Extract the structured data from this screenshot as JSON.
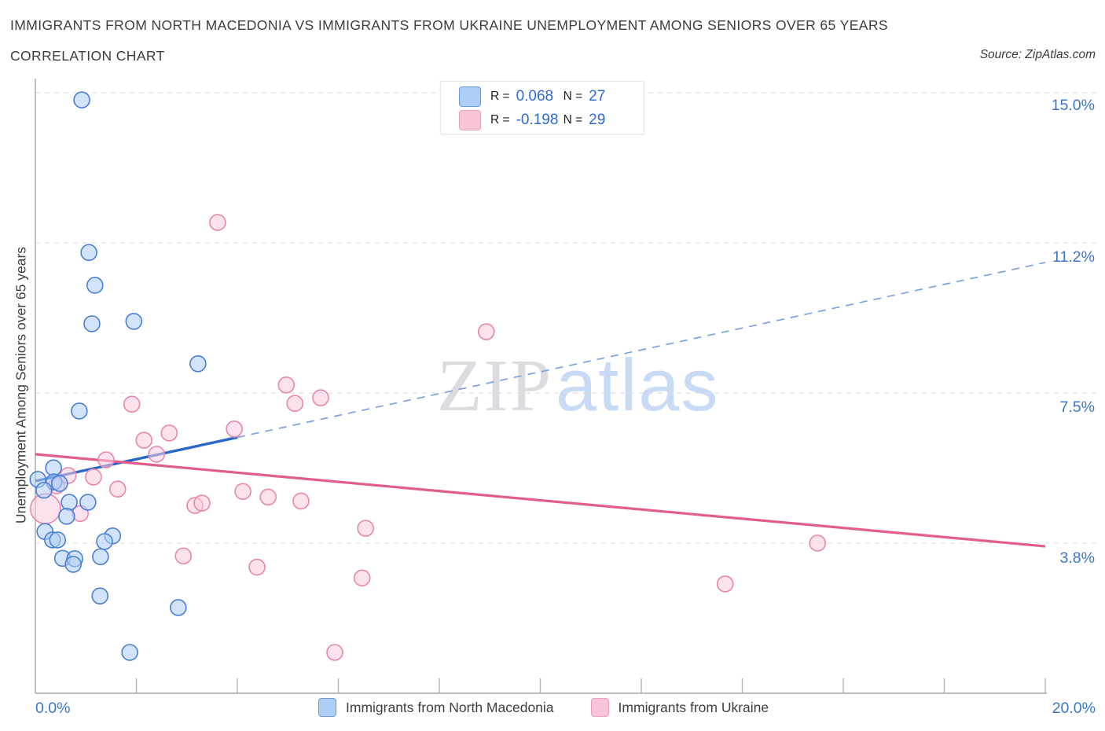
{
  "header": {
    "title": "IMMIGRANTS FROM NORTH MACEDONIA VS IMMIGRANTS FROM UKRAINE UNEMPLOYMENT AMONG SENIORS OVER 65 YEARS",
    "subtitle": "CORRELATION CHART",
    "source": "Source: ZipAtlas.com"
  },
  "watermark": {
    "part1": "ZIP",
    "part2": "atlas"
  },
  "legend_box": {
    "rows": [
      {
        "series": "north_macedonia",
        "r_label": "R =",
        "r_value": "0.068",
        "n_label": "N =",
        "n_value": "27"
      },
      {
        "series": "ukraine",
        "r_label": "R =",
        "r_value": "-0.198",
        "n_label": "N =",
        "n_value": "29"
      }
    ]
  },
  "chart_data": {
    "type": "scatter",
    "title": "Immigrants from North Macedonia vs Immigrants from Ukraine Unemployment Among Seniors over 65 years",
    "ylabel": "Unemployment Among Seniors over 65 years",
    "xlabel": "",
    "x_range": [
      0,
      20
    ],
    "y_range_shown": [
      0,
      15.6
    ],
    "grid": "horizontal-dashed",
    "legend_position": "bottom-center",
    "y_axis": {
      "ticks": [
        {
          "label": "15.0%",
          "value": 15.0
        },
        {
          "label": "11.2%",
          "value": 11.25
        },
        {
          "label": "7.5%",
          "value": 7.5
        },
        {
          "label": "3.8%",
          "value": 3.75
        }
      ]
    },
    "x_axis": {
      "min_label": "0.0%",
      "max_label": "20.0%",
      "tick_step_pct": 2
    },
    "series": [
      {
        "name": "Immigrants from North Macedonia",
        "key": "north_macedonia",
        "color_fill": "#aecdf5",
        "color_stroke": "#4a7fd4",
        "r": 0.068,
        "n": 27,
        "points": [
          [
            0.92,
            14.82
          ],
          [
            1.06,
            11.01
          ],
          [
            1.18,
            10.19
          ],
          [
            1.12,
            9.23
          ],
          [
            1.95,
            9.29
          ],
          [
            3.22,
            8.23
          ],
          [
            0.87,
            7.05
          ],
          [
            0.36,
            5.63
          ],
          [
            0.37,
            5.28
          ],
          [
            0.05,
            5.34
          ],
          [
            0.48,
            5.24
          ],
          [
            0.17,
            5.07
          ],
          [
            0.67,
            4.77
          ],
          [
            1.04,
            4.77
          ],
          [
            0.62,
            4.42
          ],
          [
            0.19,
            4.04
          ],
          [
            0.34,
            3.83
          ],
          [
            0.44,
            3.83
          ],
          [
            1.53,
            3.93
          ],
          [
            1.37,
            3.79
          ],
          [
            1.29,
            3.41
          ],
          [
            0.54,
            3.37
          ],
          [
            0.78,
            3.36
          ],
          [
            0.75,
            3.22
          ],
          [
            1.28,
            2.43
          ],
          [
            2.83,
            2.14
          ],
          [
            1.87,
            1.02
          ]
        ]
      },
      {
        "name": "Immigrants from Ukraine",
        "key": "ukraine",
        "color_fill": "#f9cadd",
        "color_stroke": "#e787ab",
        "r": -0.198,
        "n": 29,
        "points": [
          [
            3.61,
            11.76
          ],
          [
            8.93,
            9.03
          ],
          [
            4.97,
            7.7
          ],
          [
            5.65,
            7.38
          ],
          [
            5.14,
            7.24
          ],
          [
            1.91,
            7.22
          ],
          [
            3.94,
            6.6
          ],
          [
            2.65,
            6.5
          ],
          [
            2.15,
            6.32
          ],
          [
            2.4,
            5.97
          ],
          [
            1.4,
            5.83
          ],
          [
            0.65,
            5.44
          ],
          [
            1.15,
            5.4
          ],
          [
            1.63,
            5.1
          ],
          [
            0.2,
            4.61,
            19
          ],
          [
            0.89,
            4.49
          ],
          [
            3.16,
            4.69
          ],
          [
            3.3,
            4.75
          ],
          [
            4.11,
            5.04
          ],
          [
            4.61,
            4.9
          ],
          [
            5.26,
            4.8
          ],
          [
            6.54,
            4.12
          ],
          [
            2.93,
            3.43
          ],
          [
            4.39,
            3.15
          ],
          [
            6.47,
            2.88
          ],
          [
            15.49,
            3.75
          ],
          [
            13.66,
            2.73
          ],
          [
            5.93,
            1.02
          ],
          [
            0.42,
            5.18
          ]
        ]
      }
    ],
    "trend_lines": [
      {
        "series": "north_macedonia",
        "color": "#2b66c9",
        "x1": 0,
        "y1": 5.3,
        "x2": 20,
        "y2": 10.76,
        "solid_until_x": 4.0,
        "dash_color": "#7aa3e0"
      },
      {
        "series": "ukraine",
        "color": "#e25c8c",
        "x1": 0,
        "y1": 5.97,
        "x2": 20,
        "y2": 3.67
      }
    ]
  }
}
